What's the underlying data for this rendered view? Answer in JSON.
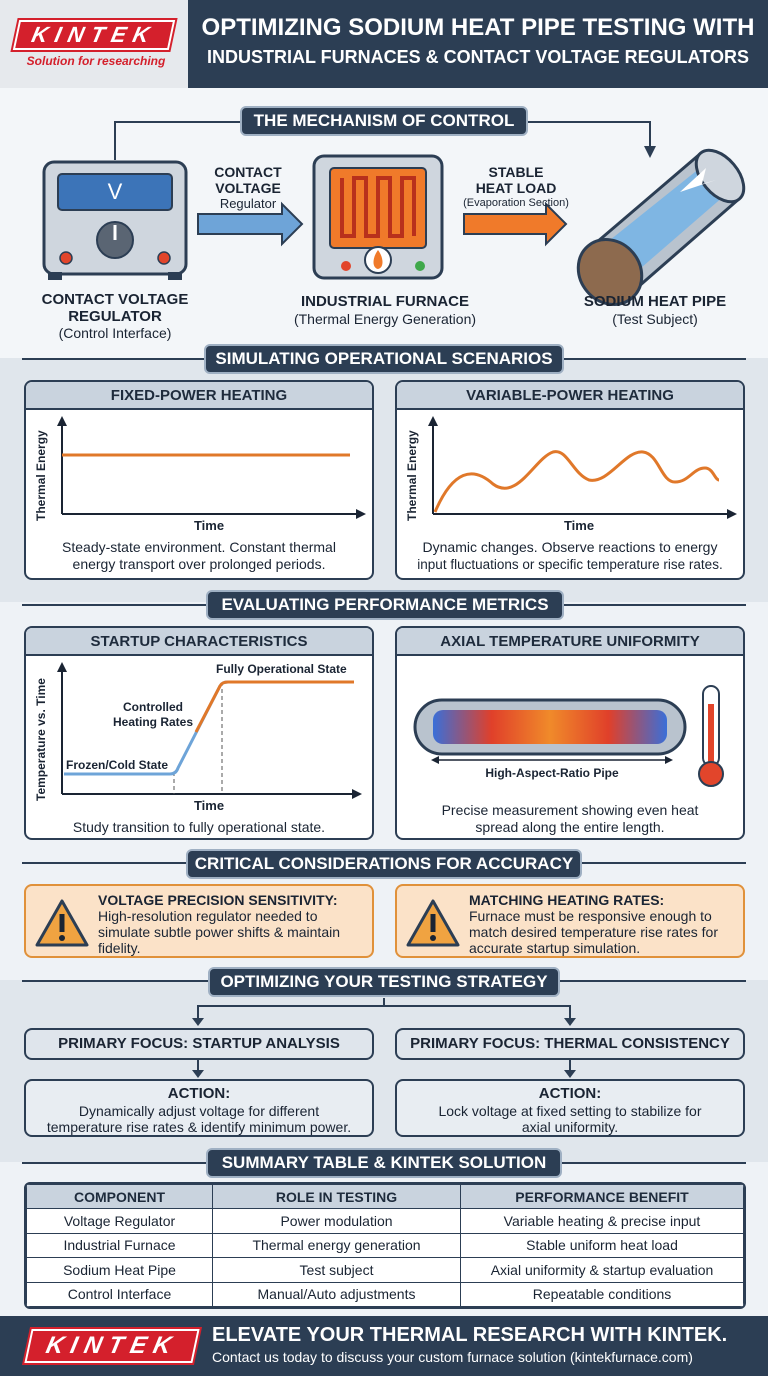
{
  "header": {
    "logo_text": "KINTEK",
    "logo_tagline": "Solution for researching",
    "title_line1": "OPTIMIZING SODIUM HEAT PIPE TESTING WITH",
    "title_line2": "INDUSTRIAL FURNACES & CONTACT VOLTAGE REGULATORS"
  },
  "mechanism": {
    "section_title": "THE MECHANISM OF CONTROL",
    "regulator_display": "V",
    "regulator_label_1": "CONTACT VOLTAGE",
    "regulator_label_2": "REGULATOR",
    "regulator_sub": "(Control Interface)",
    "arrow1_line1": "CONTACT",
    "arrow1_line2": "VOLTAGE",
    "arrow1_sub": "Regulator",
    "furnace_label": "INDUSTRIAL FURNACE",
    "furnace_sub": "(Thermal Energy Generation)",
    "arrow2_line1": "STABLE",
    "arrow2_line2": "HEAT LOAD",
    "arrow2_sub": "(Evaporation Section)",
    "pipe_label": "SODIUM HEAT PIPE",
    "pipe_sub": "(Test Subject)"
  },
  "scenarios": {
    "section_title": "SIMULATING OPERATIONAL SCENARIOS",
    "fixed": {
      "title": "FIXED-POWER HEATING",
      "ylabel": "Thermal Energy",
      "xlabel": "Time",
      "caption_1": "Steady-state environment. Constant thermal",
      "caption_2": "energy transport over prolonged periods."
    },
    "variable": {
      "title": "VARIABLE-POWER HEATING",
      "ylabel": "Thermal Energy",
      "xlabel": "Time",
      "caption_1": "Dynamic changes. Observe reactions to energy",
      "caption_2": "input fluctuations or specific temperature rise rates."
    }
  },
  "metrics": {
    "section_title": "EVALUATING PERFORMANCE METRICS",
    "startup": {
      "title": "STARTUP CHARACTERISTICS",
      "ylabel": "Temperature vs. Time",
      "xlabel": "Time",
      "label_full": "Fully Operational State",
      "label_controlled_1": "Controlled",
      "label_controlled_2": "Heating Rates",
      "label_frozen": "Frozen/Cold State",
      "caption": "Study transition to fully operational state."
    },
    "axial": {
      "title": "AXIAL TEMPERATURE UNIFORMITY",
      "pipe_label": "High-Aspect-Ratio Pipe",
      "caption_1": "Precise measurement showing even heat",
      "caption_2": "spread along the entire length."
    }
  },
  "considerations": {
    "section_title": "CRITICAL CONSIDERATIONS FOR ACCURACY",
    "left_title": "VOLTAGE PRECISION SENSITIVITY:",
    "left_1": "High-resolution regulator needed to",
    "left_2": "simulate subtle power shifts & maintain",
    "left_3": "fidelity.",
    "right_title": "MATCHING HEATING RATES:",
    "right_1": "Furnace must be responsive enough to",
    "right_2": "match desired temperature rise rates for",
    "right_3": "accurate startup simulation."
  },
  "strategy": {
    "section_title": "OPTIMIZING YOUR TESTING STRATEGY",
    "left_focus": "PRIMARY FOCUS: STARTUP ANALYSIS",
    "left_action_title": "ACTION:",
    "left_action_1": "Dynamically adjust voltage for different",
    "left_action_2": "temperature rise rates & identify minimum power.",
    "right_focus": "PRIMARY FOCUS: THERMAL CONSISTENCY",
    "right_action_title": "ACTION:",
    "right_action_1": "Lock voltage at fixed setting to stabilize for",
    "right_action_2": "axial uniformity."
  },
  "summary": {
    "section_title": "SUMMARY TABLE & KINTEK SOLUTION",
    "headers": [
      "COMPONENT",
      "ROLE IN TESTING",
      "PERFORMANCE BENEFIT"
    ],
    "rows": [
      [
        "Voltage Regulator",
        "Power modulation",
        "Variable heating & precise input"
      ],
      [
        "Industrial Furnace",
        "Thermal energy generation",
        "Stable uniform heat load"
      ],
      [
        "Sodium Heat Pipe",
        "Test subject",
        "Axial uniformity & startup evaluation"
      ],
      [
        "Control Interface",
        "Manual/Auto adjustments",
        "Repeatable conditions"
      ]
    ]
  },
  "footer": {
    "logo_text": "KINTEK",
    "headline": "ELEVATE YOUR THERMAL RESEARCH WITH KINTEK.",
    "sub": "Contact us today to discuss your custom furnace solution (kintekfurnace.com)"
  },
  "colors": {
    "navy": "#2c3e54",
    "orange": "#e0782a",
    "brand_red": "#d4202c",
    "warn_bg": "#fbe2c8"
  }
}
